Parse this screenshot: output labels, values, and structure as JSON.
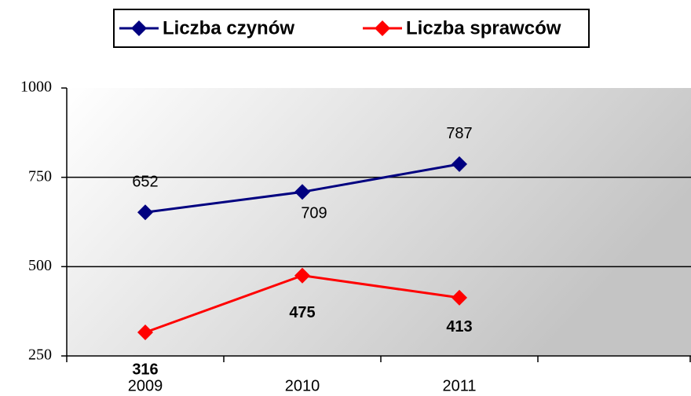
{
  "chart_data": {
    "type": "line",
    "categories": [
      "2009",
      "2010",
      "2011",
      null
    ],
    "series": [
      {
        "name": "Liczba czynów",
        "color": "#000080",
        "values": [
          652,
          709,
          787,
          null
        ]
      },
      {
        "name": "Liczba sprawców",
        "color": "#ff0000",
        "values": [
          316,
          475,
          413,
          null
        ]
      }
    ],
    "ylim": [
      250,
      1000
    ],
    "yticks": [
      250,
      500,
      750,
      1000
    ],
    "grid": true,
    "legend": "top"
  }
}
